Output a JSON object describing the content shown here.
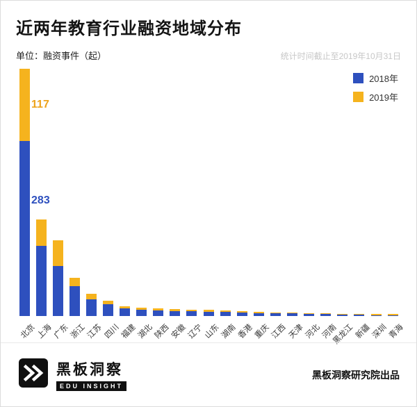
{
  "header": {
    "title": "近两年教育行业融资地域分布",
    "unit_label": "单位：融资事件（起）",
    "date_note": "统计时间截止至2019年10月31日"
  },
  "chart_data": {
    "type": "bar",
    "stacked": true,
    "title": "近两年教育行业融资地域分布",
    "ylabel": "融资事件（起）",
    "xlabel": "",
    "ylim": [
      0,
      400
    ],
    "grid": false,
    "legend_position": "top-right",
    "categories": [
      "北京",
      "上海",
      "广东",
      "浙江",
      "江苏",
      "四川",
      "福建",
      "湖北",
      "陕西",
      "安徽",
      "辽宁",
      "山东",
      "湖南",
      "香港",
      "重庆",
      "江西",
      "天津",
      "河北",
      "河南",
      "黑龙江",
      "新疆",
      "深圳",
      "青海"
    ],
    "series": [
      {
        "name": "2018年",
        "color": "#2E50BE",
        "values": [
          283,
          113,
          81,
          48,
          27,
          19,
          12,
          10,
          9,
          8,
          8,
          7,
          7,
          6,
          5,
          4,
          4,
          3,
          3,
          2,
          2,
          1,
          1
        ]
      },
      {
        "name": "2019年",
        "color": "#F5B31E",
        "values": [
          117,
          43,
          41,
          14,
          9,
          6,
          4,
          3,
          3,
          3,
          2,
          3,
          2,
          2,
          2,
          1,
          1,
          1,
          1,
          1,
          1,
          1,
          1
        ]
      }
    ],
    "annotations": [
      {
        "category": "北京",
        "series": "2018年",
        "text": "283",
        "color": "#2E50BE"
      },
      {
        "category": "北京",
        "series": "2019年",
        "text": "117",
        "color": "#EDA31C"
      }
    ]
  },
  "footer": {
    "brand_name": "黑板洞察",
    "brand_sub": "EDU INSIGHT",
    "credit": "黑板洞察研究院出品"
  }
}
